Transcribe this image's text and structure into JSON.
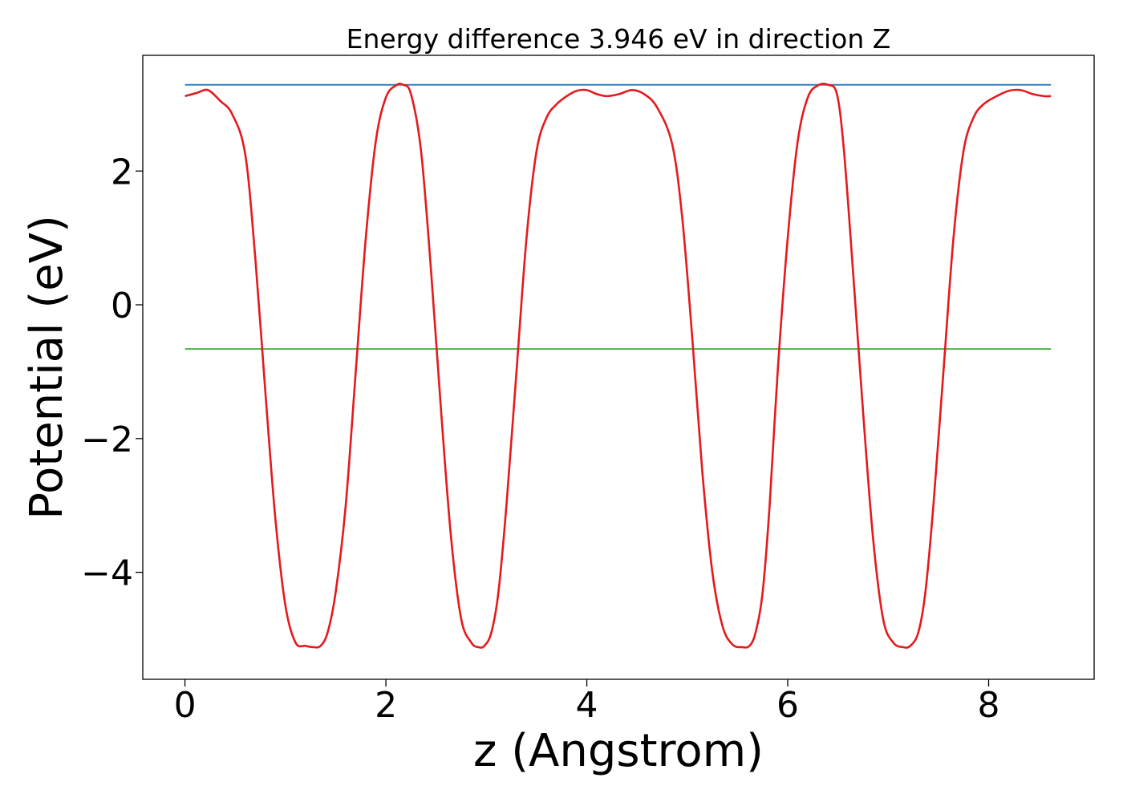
{
  "chart_data": {
    "type": "line",
    "title": "Energy difference 3.946 eV in direction Z",
    "xlabel": "z (Angstrom)",
    "ylabel": "Potential (eV)",
    "xlim": [
      -0.42,
      9.05
    ],
    "ylim": [
      -5.6,
      3.73
    ],
    "xticks": [
      0,
      2,
      4,
      6,
      8
    ],
    "xtick_labels": [
      "0",
      "2",
      "4",
      "6",
      "8"
    ],
    "yticks": [
      -4,
      -2,
      0,
      2
    ],
    "ytick_labels": [
      "−4",
      "−2",
      "0",
      "2"
    ],
    "grid": false,
    "series": [
      {
        "color": "#e41a1c",
        "x": [
          0,
          0.12,
          0.23,
          0.35,
          0.47,
          0.6,
          0.7,
          0.8,
          0.9,
          1.0,
          1.1,
          1.2,
          1.28,
          1.35,
          1.42,
          1.5,
          1.6,
          1.7,
          1.8,
          1.9,
          2.0,
          2.1,
          2.17,
          2.25,
          2.35,
          2.45,
          2.55,
          2.65,
          2.75,
          2.85,
          2.92,
          2.98,
          3.05,
          3.12,
          3.2,
          3.3,
          3.4,
          3.5,
          3.6,
          3.7,
          3.8,
          3.9,
          4.0,
          4.1,
          4.2,
          4.32,
          4.45,
          4.57,
          4.7,
          4.85,
          4.95,
          5.05,
          5.15,
          5.25,
          5.35,
          5.45,
          5.55,
          5.62,
          5.68,
          5.75,
          5.82,
          5.9,
          6.0,
          6.1,
          6.2,
          6.3,
          6.4,
          6.49,
          6.56,
          6.65,
          6.75,
          6.85,
          6.95,
          7.05,
          7.15,
          7.22,
          7.3,
          7.37,
          7.45,
          7.55,
          7.65,
          7.75,
          7.85,
          7.95,
          8.08,
          8.2,
          8.32,
          8.44,
          8.55,
          8.62
        ],
        "values": [
          3.12,
          3.17,
          3.21,
          3.05,
          2.85,
          2.25,
          0.7,
          -1.3,
          -3.2,
          -4.5,
          -5.05,
          -5.1,
          -5.12,
          -5.1,
          -4.9,
          -4.3,
          -3.0,
          -1.0,
          1.0,
          2.45,
          3.1,
          3.28,
          3.29,
          3.15,
          2.3,
          0.5,
          -1.6,
          -3.5,
          -4.7,
          -5.05,
          -5.12,
          -5.1,
          -4.9,
          -4.3,
          -3.0,
          -1.0,
          1.0,
          2.3,
          2.8,
          3.0,
          3.12,
          3.2,
          3.21,
          3.15,
          3.12,
          3.15,
          3.21,
          3.15,
          2.95,
          2.4,
          1.3,
          -0.5,
          -2.5,
          -4.0,
          -4.8,
          -5.08,
          -5.12,
          -5.1,
          -4.9,
          -4.3,
          -3.0,
          -1.0,
          1.0,
          2.45,
          3.1,
          3.28,
          3.29,
          3.15,
          2.3,
          0.5,
          -1.6,
          -3.5,
          -4.7,
          -5.05,
          -5.12,
          -5.1,
          -4.9,
          -4.3,
          -3.0,
          -1.0,
          1.0,
          2.3,
          2.8,
          3.0,
          3.12,
          3.2,
          3.21,
          3.15,
          3.12,
          3.12
        ]
      },
      {
        "color": "#377eb8",
        "x": [
          0,
          8.62
        ],
        "values": [
          3.29,
          3.29
        ]
      },
      {
        "color": "#4daf4a",
        "x": [
          0,
          8.62
        ],
        "values": [
          -0.66,
          -0.66
        ]
      }
    ]
  }
}
